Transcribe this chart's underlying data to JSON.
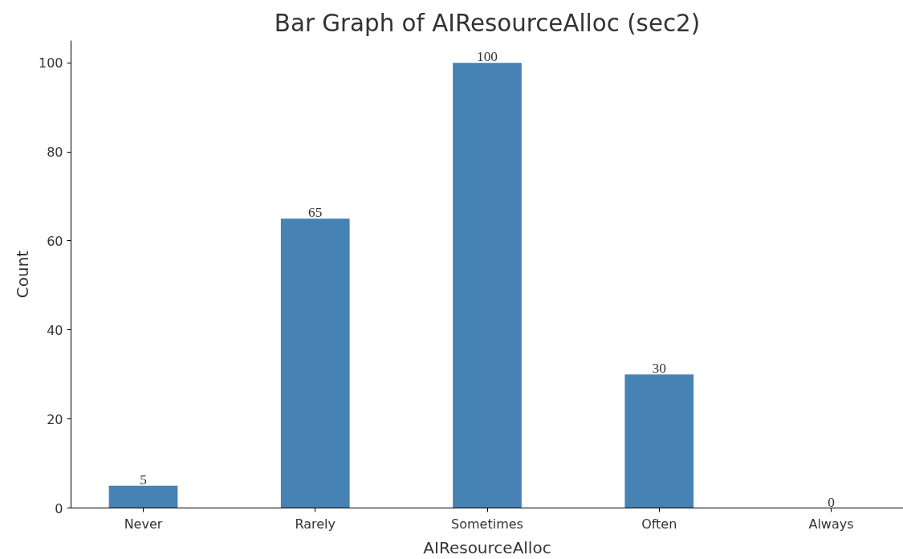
{
  "chart_data": {
    "type": "bar",
    "title": "Bar Graph of AIResourceAlloc (sec2)",
    "xlabel": "AIResourceAlloc",
    "ylabel": "Count",
    "categories": [
      "Never",
      "Rarely",
      "Sometimes",
      "Often",
      "Always"
    ],
    "values": [
      5,
      65,
      100,
      30,
      0
    ],
    "color": "#4682b4",
    "ylim": [
      0,
      105
    ],
    "yticks": [
      0,
      20,
      40,
      60,
      80,
      100
    ],
    "grid": false,
    "data_labels": true
  }
}
